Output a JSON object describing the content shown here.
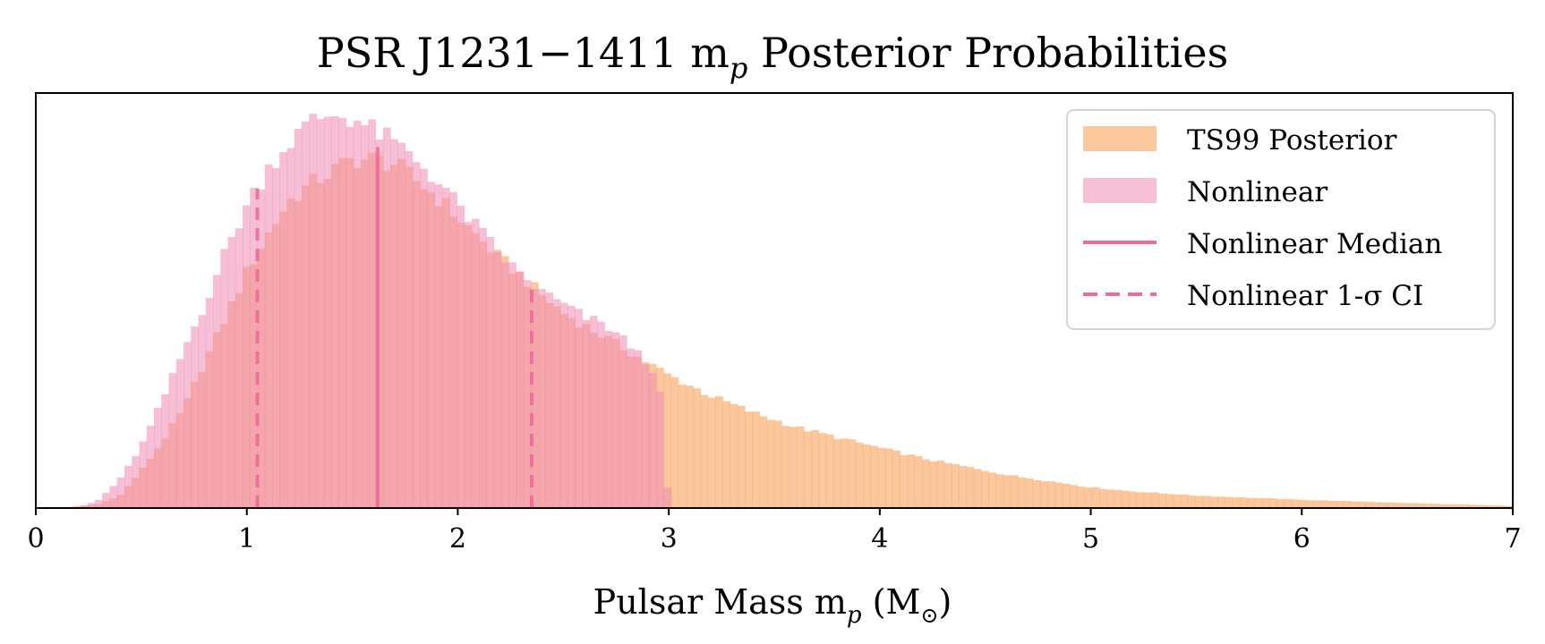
{
  "chart_data": {
    "type": "histogram",
    "title_main": "PSR J1231−1411 m",
    "title_sub": "p",
    "title_rest": " Posterior Probabilities",
    "xlabel_main": "Pulsar Mass m",
    "xlabel_sub": "p",
    "xlabel_rest": " (M",
    "xlabel_sub2": "⊙",
    "xlabel_end": ")",
    "ylabel": "",
    "xlim": [
      0,
      7
    ],
    "ylim": [
      0,
      1.0
    ],
    "x_ticks": [
      0,
      1,
      2,
      3,
      4,
      5,
      6,
      7
    ],
    "y_ticks_visible": false,
    "legend": {
      "location": "upper-right",
      "entries": [
        {
          "label": "TS99 Posterior",
          "style": "patch",
          "color": "#f9a45c"
        },
        {
          "label": "Nonlinear",
          "style": "patch",
          "color": "#f08ab5"
        },
        {
          "label": "Nonlinear Median",
          "style": "solid-line",
          "color": "#ef6a9b"
        },
        {
          "label": "Nonlinear 1-σ CI",
          "style": "dashed-line",
          "color": "#ef6a9b"
        }
      ]
    },
    "series": [
      {
        "name": "TS99 Posterior",
        "color": "#f9a45c",
        "alpha": 0.6,
        "bin_width": 0.035,
        "control_points": {
          "x": [
            0.1,
            0.3,
            0.4,
            0.5,
            0.6,
            0.7,
            0.8,
            0.9,
            1.0,
            1.1,
            1.2,
            1.3,
            1.4,
            1.5,
            1.6,
            1.7,
            1.8,
            1.9,
            2.0,
            2.1,
            2.2,
            2.3,
            2.4,
            2.5,
            2.6,
            2.7,
            2.8,
            2.9,
            3.0,
            3.2,
            3.4,
            3.6,
            3.8,
            4.0,
            4.2,
            4.4,
            4.6,
            4.8,
            5.0,
            5.2,
            5.5,
            6.0,
            6.5,
            7.0
          ],
          "y": [
            0.0,
            0.01,
            0.03,
            0.09,
            0.16,
            0.24,
            0.35,
            0.46,
            0.57,
            0.66,
            0.74,
            0.78,
            0.81,
            0.84,
            0.84,
            0.83,
            0.79,
            0.75,
            0.7,
            0.65,
            0.6,
            0.56,
            0.51,
            0.47,
            0.44,
            0.41,
            0.38,
            0.35,
            0.32,
            0.27,
            0.23,
            0.195,
            0.17,
            0.145,
            0.12,
            0.1,
            0.08,
            0.065,
            0.05,
            0.04,
            0.03,
            0.02,
            0.012,
            0.005
          ]
        }
      },
      {
        "name": "Nonlinear",
        "color": "#f08ab5",
        "alpha": 0.55,
        "bin_width": 0.035,
        "control_points": {
          "x": [
            0.2,
            0.3,
            0.4,
            0.5,
            0.6,
            0.7,
            0.8,
            0.9,
            1.0,
            1.1,
            1.2,
            1.3,
            1.4,
            1.5,
            1.6,
            1.7,
            1.8,
            1.9,
            2.0,
            2.1,
            2.2,
            2.3,
            2.4,
            2.5,
            2.6,
            2.7,
            2.8,
            2.95,
            3.0
          ],
          "y": [
            0.0,
            0.02,
            0.07,
            0.15,
            0.26,
            0.38,
            0.49,
            0.62,
            0.73,
            0.82,
            0.88,
            0.93,
            0.95,
            0.94,
            0.91,
            0.88,
            0.84,
            0.79,
            0.73,
            0.67,
            0.61,
            0.56,
            0.52,
            0.49,
            0.46,
            0.44,
            0.4,
            0.32,
            0.0
          ]
        }
      }
    ],
    "median": {
      "x": 1.62,
      "height": 0.87
    },
    "ci_lines": [
      {
        "x": 1.05,
        "height": 0.77
      },
      {
        "x": 2.35,
        "height": 0.54
      }
    ]
  }
}
